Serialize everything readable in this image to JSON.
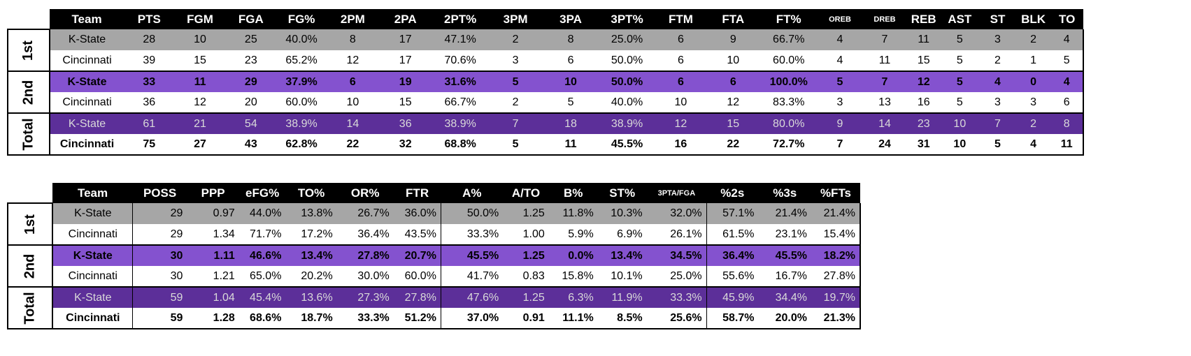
{
  "box": {
    "headers": [
      "Team",
      "PTS",
      "FGM",
      "FGA",
      "FG%",
      "2PM",
      "2PA",
      "2PT%",
      "3PM",
      "3PA",
      "3PT%",
      "FTM",
      "FTA",
      "FT%",
      "OREB",
      "DREB",
      "REB",
      "AST",
      "ST",
      "BLK",
      "TO"
    ],
    "periods": [
      "1st",
      "2nd",
      "Total"
    ],
    "rows": [
      [
        "K-State",
        "28",
        "10",
        "25",
        "40.0%",
        "8",
        "17",
        "47.1%",
        "2",
        "8",
        "25.0%",
        "6",
        "9",
        "66.7%",
        "4",
        "7",
        "11",
        "5",
        "3",
        "2",
        "4"
      ],
      [
        "Cincinnati",
        "39",
        "15",
        "23",
        "65.2%",
        "12",
        "17",
        "70.6%",
        "3",
        "6",
        "50.0%",
        "6",
        "10",
        "60.0%",
        "4",
        "11",
        "15",
        "5",
        "2",
        "1",
        "5"
      ],
      [
        "K-State",
        "33",
        "11",
        "29",
        "37.9%",
        "6",
        "19",
        "31.6%",
        "5",
        "10",
        "50.0%",
        "6",
        "6",
        "100.0%",
        "5",
        "7",
        "12",
        "5",
        "4",
        "0",
        "4"
      ],
      [
        "Cincinnati",
        "36",
        "12",
        "20",
        "60.0%",
        "10",
        "15",
        "66.7%",
        "2",
        "5",
        "40.0%",
        "10",
        "12",
        "83.3%",
        "3",
        "13",
        "16",
        "5",
        "3",
        "3",
        "6"
      ],
      [
        "K-State",
        "61",
        "21",
        "54",
        "38.9%",
        "14",
        "36",
        "38.9%",
        "7",
        "18",
        "38.9%",
        "12",
        "15",
        "80.0%",
        "9",
        "14",
        "23",
        "10",
        "7",
        "2",
        "8"
      ],
      [
        "Cincinnati",
        "75",
        "27",
        "43",
        "62.8%",
        "22",
        "32",
        "68.8%",
        "5",
        "11",
        "45.5%",
        "16",
        "22",
        "72.7%",
        "7",
        "24",
        "31",
        "10",
        "5",
        "4",
        "11"
      ]
    ]
  },
  "adv": {
    "headers": [
      "Team",
      "POSS",
      "PPP",
      "eFG%",
      "TO%",
      "OR%",
      "FTR",
      "A%",
      "A/TO",
      "B%",
      "ST%",
      "3PTA/FGA",
      "%2s",
      "%3s",
      "%FTs"
    ],
    "periods": [
      "1st",
      "2nd",
      "Total"
    ],
    "rows": [
      [
        "K-State",
        "29",
        "0.97",
        "44.0%",
        "13.8%",
        "26.7%",
        "36.0%",
        "50.0%",
        "1.25",
        "11.8%",
        "10.3%",
        "32.0%",
        "57.1%",
        "21.4%",
        "21.4%"
      ],
      [
        "Cincinnati",
        "29",
        "1.34",
        "71.7%",
        "17.2%",
        "36.4%",
        "43.5%",
        "33.3%",
        "1.00",
        "5.9%",
        "6.9%",
        "26.1%",
        "61.5%",
        "23.1%",
        "15.4%"
      ],
      [
        "K-State",
        "30",
        "1.11",
        "46.6%",
        "13.4%",
        "27.8%",
        "20.7%",
        "45.5%",
        "1.25",
        "0.0%",
        "13.4%",
        "34.5%",
        "36.4%",
        "45.5%",
        "18.2%"
      ],
      [
        "Cincinnati",
        "30",
        "1.21",
        "65.0%",
        "20.2%",
        "30.0%",
        "60.0%",
        "41.7%",
        "0.83",
        "15.8%",
        "10.1%",
        "25.0%",
        "55.6%",
        "16.7%",
        "27.8%"
      ],
      [
        "K-State",
        "59",
        "1.04",
        "45.4%",
        "13.6%",
        "27.3%",
        "27.8%",
        "47.6%",
        "1.25",
        "6.3%",
        "11.9%",
        "33.3%",
        "45.9%",
        "34.4%",
        "19.7%"
      ],
      [
        "Cincinnati",
        "59",
        "1.28",
        "68.6%",
        "18.7%",
        "33.3%",
        "51.2%",
        "37.0%",
        "0.91",
        "11.1%",
        "8.5%",
        "25.6%",
        "58.7%",
        "20.0%",
        "21.3%"
      ]
    ]
  },
  "colors": {
    "header_bg": "#000000",
    "gray_row": "#a6a6a6",
    "purple_row": "#8452cf",
    "dark_purple_row": "#5c2f99"
  }
}
